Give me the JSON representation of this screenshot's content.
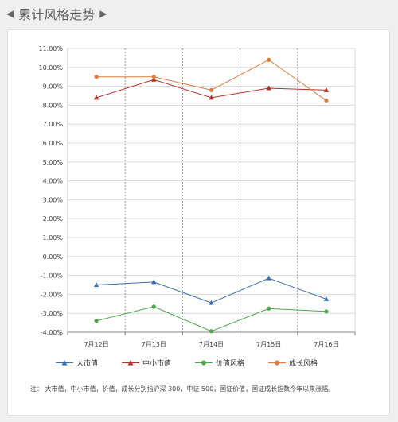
{
  "header": {
    "left_arrow": "◀",
    "title": "累计风格走势",
    "right_arrow": "▶"
  },
  "chart_data": {
    "type": "line",
    "title": "",
    "xlabel": "",
    "ylabel": "",
    "categories": [
      "7月12日",
      "7月13日",
      "7月14日",
      "7月15日",
      "7月16日"
    ],
    "ylim": [
      -4.0,
      11.0
    ],
    "y_tick_step": 1.0,
    "y_tick_format": "percent_2dp",
    "grid": "horizontal solid, vertical dashed",
    "legend_position": "bottom",
    "series": [
      {
        "name": "大市值",
        "color": "#3b6fb6",
        "marker": "triangle",
        "values": [
          -1.5,
          -1.35,
          -2.45,
          -1.15,
          -2.25
        ]
      },
      {
        "name": "中小市值",
        "color": "#b8302a",
        "marker": "triangle",
        "values": [
          8.4,
          9.35,
          8.4,
          8.9,
          8.8
        ]
      },
      {
        "name": "价值风格",
        "color": "#4aa84a",
        "marker": "circle",
        "values": [
          -3.4,
          -2.65,
          -3.95,
          -2.75,
          -2.9
        ]
      },
      {
        "name": "成长风格",
        "color": "#e07b39",
        "marker": "circle",
        "values": [
          9.5,
          9.5,
          8.8,
          10.4,
          8.25
        ]
      }
    ]
  },
  "note": "注： 大市值，中小市值，价值，成长分别指沪深 300，中证 500，国证价值，国证成长指数今年以来涨幅。"
}
